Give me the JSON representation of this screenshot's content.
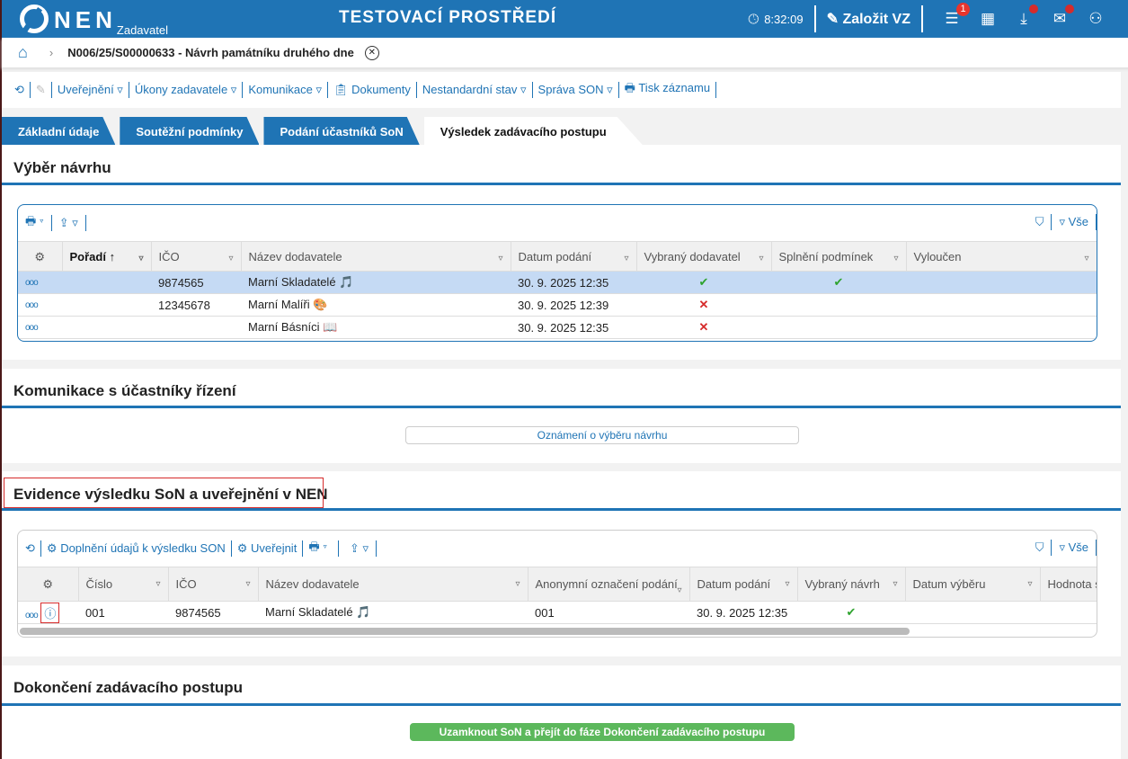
{
  "header": {
    "logo": "NEN",
    "logo_sub": "Zadavatel",
    "environment": "TESTOVACÍ PROSTŘEDÍ",
    "time": "8:32:09",
    "create_label": "Založit VZ",
    "menu_badge": "1",
    "accent": "#1f74b5"
  },
  "breadcrumb": {
    "title": "N006/25/S00000633 - Návrh památníku druhého dne"
  },
  "toolbar": {
    "items": [
      "Uveřejnění",
      "Úkony zadavatele",
      "Komunikace",
      "Dokumenty",
      "Nestandardní stav",
      "Správa SON",
      "Tisk záznamu"
    ]
  },
  "tabs": [
    "Základní údaje",
    "Soutěžní podmínky",
    "Podání účastníků SoN",
    "Výsledek zadávacího postupu"
  ],
  "vyber": {
    "title": "Výběr návrhu",
    "filter_all": "Vše",
    "columns": [
      "Pořadí",
      "IČO",
      "Název dodavatele",
      "Datum podání",
      "Vybraný dodavatel",
      "Splnění podmínek",
      "Vyloučen"
    ],
    "rows": [
      {
        "ico": "9874565",
        "name": "Marní Skladatelé",
        "emoji": "🎵",
        "date": "30. 9. 2025 12:35",
        "selected": "✔",
        "conditions": "✔"
      },
      {
        "ico": "12345678",
        "name": "Marní Malíři",
        "emoji": "🎨",
        "date": "30. 9. 2025 12:39",
        "selected": "✕",
        "conditions": ""
      },
      {
        "ico": "",
        "name": "Marní Básníci",
        "emoji": "📖",
        "date": "30. 9. 2025 12:35",
        "selected": "✕",
        "conditions": ""
      }
    ]
  },
  "komunikace": {
    "title": "Komunikace s účastníky řízení",
    "button": "Oznámení o výběru návrhu"
  },
  "evidence": {
    "title": "Evidence výsledku SoN a uveřejnění v NEN",
    "tb_fill": "Doplnění údajů k výsledku SON",
    "tb_publish": "Uveřejnit",
    "filter_all": "Vše",
    "columns": [
      "Číslo",
      "IČO",
      "Název dodavatele",
      "Anonymní označení podání",
      "Datum podání",
      "Vybraný návrh",
      "Datum výběru",
      "Hodnota s"
    ],
    "row": {
      "cislo": "001",
      "ico": "9874565",
      "name": "Marní Skladatelé",
      "emoji": "🎵",
      "anon": "001",
      "date": "30. 9. 2025 12:35",
      "selected": "✔"
    }
  },
  "dokonceni": {
    "title": "Dokončení zadávacího postupu",
    "button": "Uzamknout SoN a přejít do fáze Dokončení zadávacího postupu"
  }
}
